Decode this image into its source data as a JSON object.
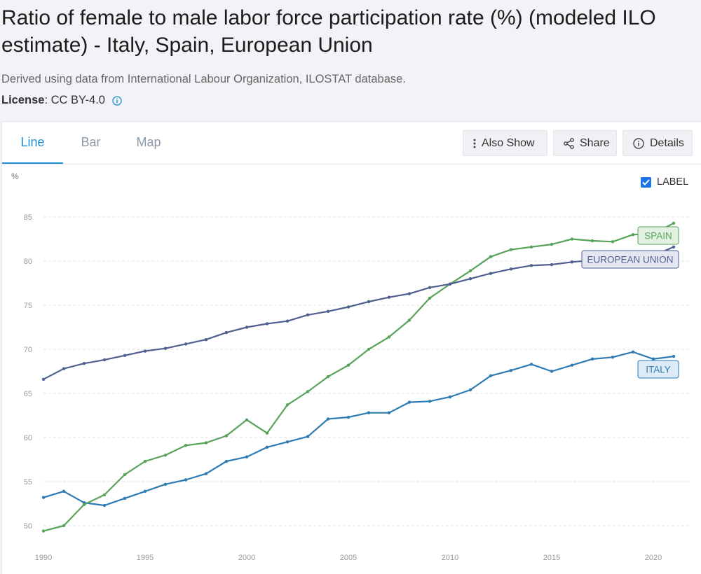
{
  "header": {
    "title": "Ratio of female to male labor force participation rate (%) (modeled ILO estimate) - Italy, Spain, European Union",
    "source": "Derived using data from International Labour Organization, ILOSTAT database.",
    "license_label": "License",
    "license_value": " : CC BY-4.0",
    "info_icon": "info-circle-icon"
  },
  "tabs": [
    {
      "label": "Line",
      "active": true
    },
    {
      "label": "Bar",
      "active": false
    },
    {
      "label": "Map",
      "active": false
    }
  ],
  "toolbar": {
    "also_show": {
      "label": "Also Show",
      "icon": "vertical-dots-icon"
    },
    "share": {
      "label": "Share",
      "icon": "share-icon"
    },
    "details": {
      "label": "Details",
      "icon": "info-circle-icon"
    }
  },
  "label_toggle": {
    "label": "LABEL",
    "checked": true
  },
  "colors": {
    "italy": "#2e7bb4",
    "spain": "#58a35a",
    "eu": "#4f5f8f",
    "accent": "#1b8fd4"
  },
  "chart_data": {
    "type": "line",
    "y_unit": "%",
    "ylim": [
      49,
      86
    ],
    "xlim": [
      1990,
      2021
    ],
    "y_ticks": [
      50,
      55,
      60,
      65,
      70,
      75,
      80,
      85
    ],
    "x_ticks": [
      1990,
      1995,
      2000,
      2005,
      2010,
      2015,
      2020
    ],
    "grid": true,
    "x": [
      1990,
      1991,
      1992,
      1993,
      1994,
      1995,
      1996,
      1997,
      1998,
      1999,
      2000,
      2001,
      2002,
      2003,
      2004,
      2005,
      2006,
      2007,
      2008,
      2009,
      2010,
      2011,
      2012,
      2013,
      2014,
      2015,
      2016,
      2017,
      2018,
      2019,
      2020,
      2021
    ],
    "series": [
      {
        "name": "ITALY",
        "color_key": "italy",
        "values": [
          53.2,
          53.9,
          52.6,
          52.3,
          53.1,
          53.9,
          54.7,
          55.2,
          55.9,
          57.3,
          57.8,
          58.9,
          59.5,
          60.1,
          62.1,
          62.3,
          62.8,
          62.8,
          64.0,
          64.1,
          64.6,
          65.4,
          67.0,
          67.6,
          68.3,
          67.5,
          68.2,
          68.9,
          69.1,
          69.7,
          68.9,
          69.2
        ]
      },
      {
        "name": "SPAIN",
        "color_key": "spain",
        "values": [
          49.4,
          50.0,
          52.4,
          53.5,
          55.8,
          57.3,
          58.0,
          59.1,
          59.4,
          60.2,
          62.0,
          60.5,
          63.7,
          65.2,
          66.9,
          68.2,
          70.0,
          71.4,
          73.3,
          75.8,
          77.4,
          78.9,
          80.5,
          81.3,
          81.6,
          81.9,
          82.5,
          82.3,
          82.2,
          83.0,
          83.1,
          84.3
        ]
      },
      {
        "name": "EUROPEAN UNION",
        "color_key": "eu",
        "values": [
          66.6,
          67.8,
          68.4,
          68.8,
          69.3,
          69.8,
          70.1,
          70.6,
          71.1,
          71.9,
          72.5,
          72.9,
          73.2,
          73.9,
          74.3,
          74.8,
          75.4,
          75.9,
          76.3,
          77.0,
          77.4,
          78.0,
          78.6,
          79.1,
          79.5,
          79.6,
          79.9,
          80.1,
          80.3,
          80.4,
          80.6,
          81.6
        ]
      }
    ]
  }
}
